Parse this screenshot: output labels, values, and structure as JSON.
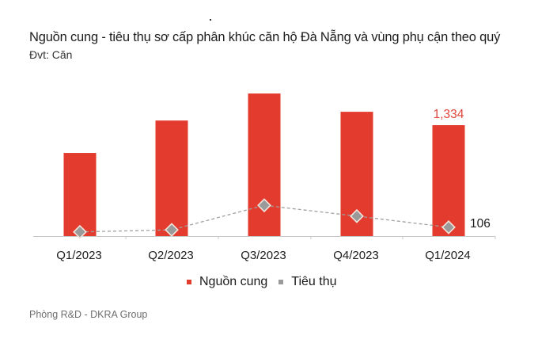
{
  "title": "Nguồn cung - tiêu thụ sơ cấp phân khúc căn hộ Đà Nẵng và vùng phụ cận theo quý",
  "subtitle": "Đvt: Căn",
  "source": "Phòng R&D - DKRA Group",
  "legend": {
    "supply": {
      "label": "Nguồn cung",
      "color": "#e33b2e"
    },
    "absorption": {
      "label": "Tiêu thụ",
      "color": "#9a9a9a"
    }
  },
  "labels": {
    "last_supply": "1,334",
    "last_absorption": "106"
  },
  "chart_data": {
    "type": "bar",
    "title": "Nguồn cung - tiêu thụ sơ cấp phân khúc căn hộ Đà Nẵng và vùng phụ cận theo quý",
    "subtitle": "Đvt: Căn",
    "xlabel": "",
    "ylabel": "Căn",
    "categories": [
      "Q1/2023",
      "Q2/2023",
      "Q3/2023",
      "Q4/2023",
      "Q1/2024"
    ],
    "series": [
      {
        "name": "Nguồn cung",
        "type": "bar",
        "color": "#e33b2e",
        "values": [
          1000,
          1390,
          1715,
          1495,
          1334
        ]
      },
      {
        "name": "Tiêu thụ",
        "type": "line",
        "style": "dashed",
        "marker": "diamond",
        "color": "#9a9a9a",
        "values": [
          50,
          75,
          370,
          240,
          106
        ]
      }
    ],
    "annotations": [
      {
        "series": "Nguồn cung",
        "category": "Q1/2024",
        "text": "1,334"
      },
      {
        "series": "Tiêu thụ",
        "category": "Q1/2024",
        "text": "106"
      }
    ],
    "ylim": [
      0,
      1800
    ],
    "grid": false,
    "legend_position": "bottom"
  }
}
